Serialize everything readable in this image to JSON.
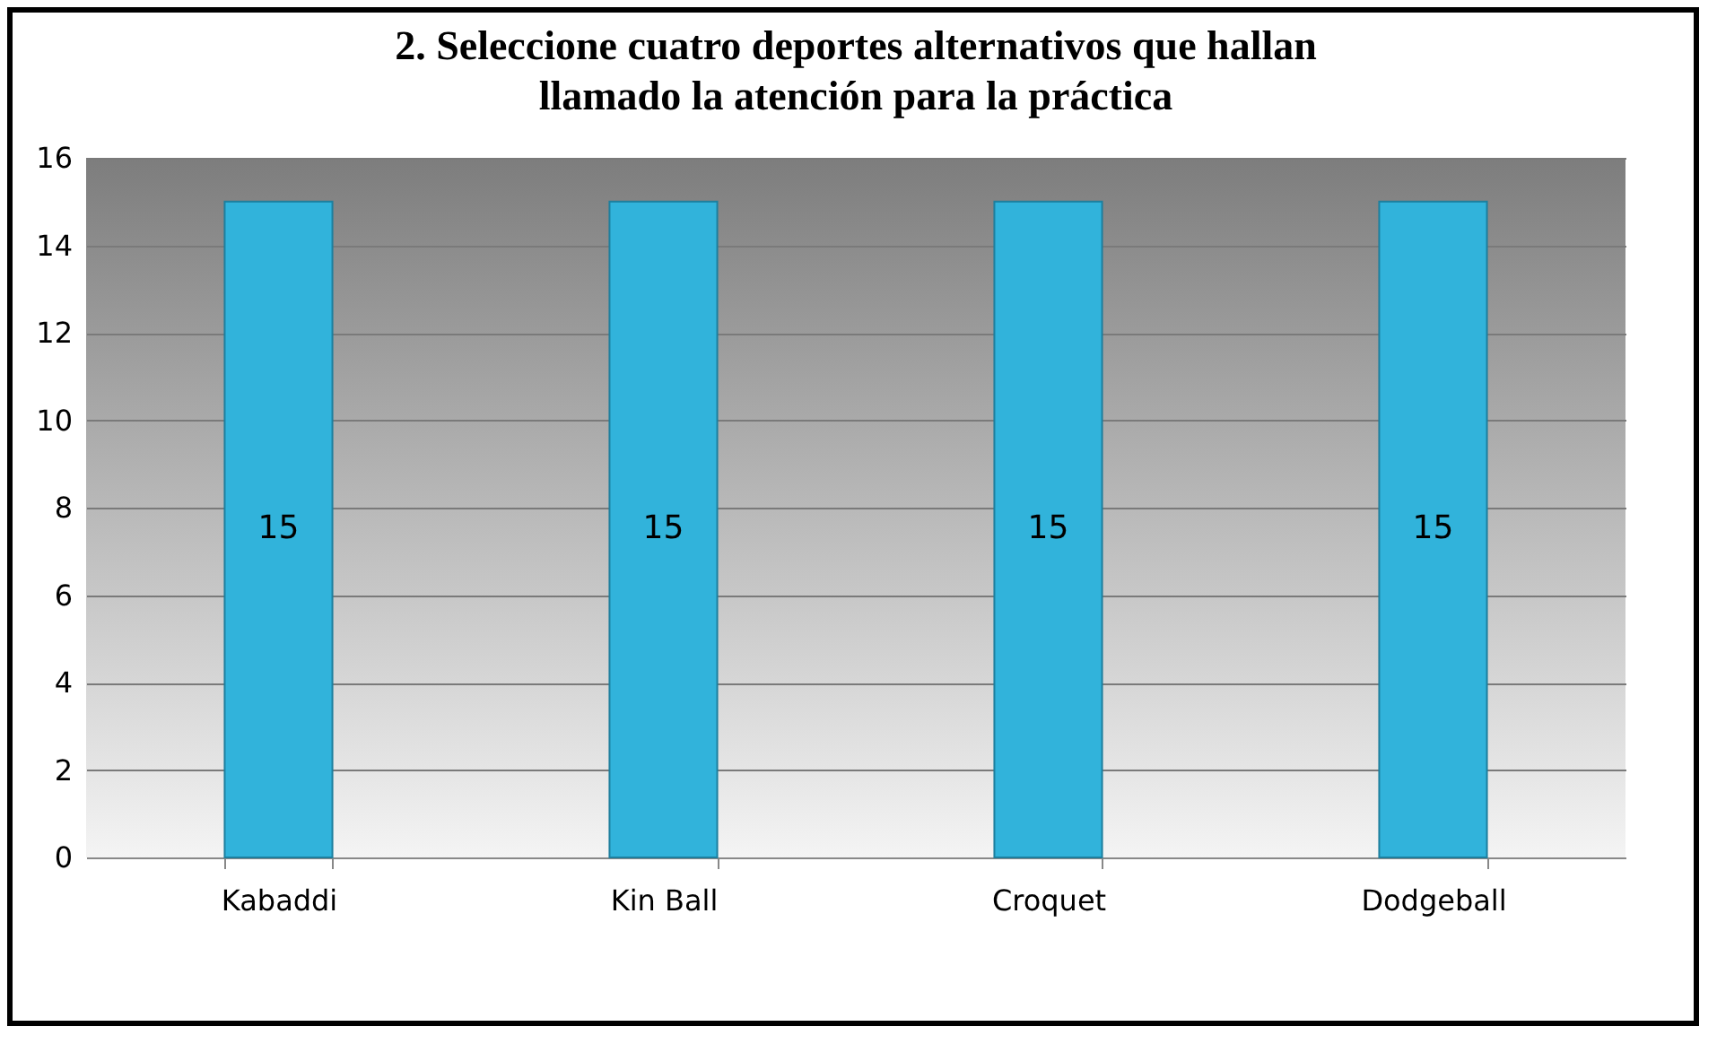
{
  "chart_data": {
    "type": "bar",
    "title": "2. Seleccione cuatro deportes alternativos que hallan\nllamado la atención para la práctica",
    "categories": [
      "Kabaddi",
      "Kin Ball",
      "Croquet",
      "Dodgeball"
    ],
    "values": [
      15,
      15,
      15,
      15
    ],
    "color": "#31b3db",
    "ylim": [
      0,
      16
    ],
    "yticks": [
      0,
      2,
      4,
      6,
      8,
      10,
      12,
      14,
      16
    ],
    "grid": "y",
    "data_labels": true
  }
}
